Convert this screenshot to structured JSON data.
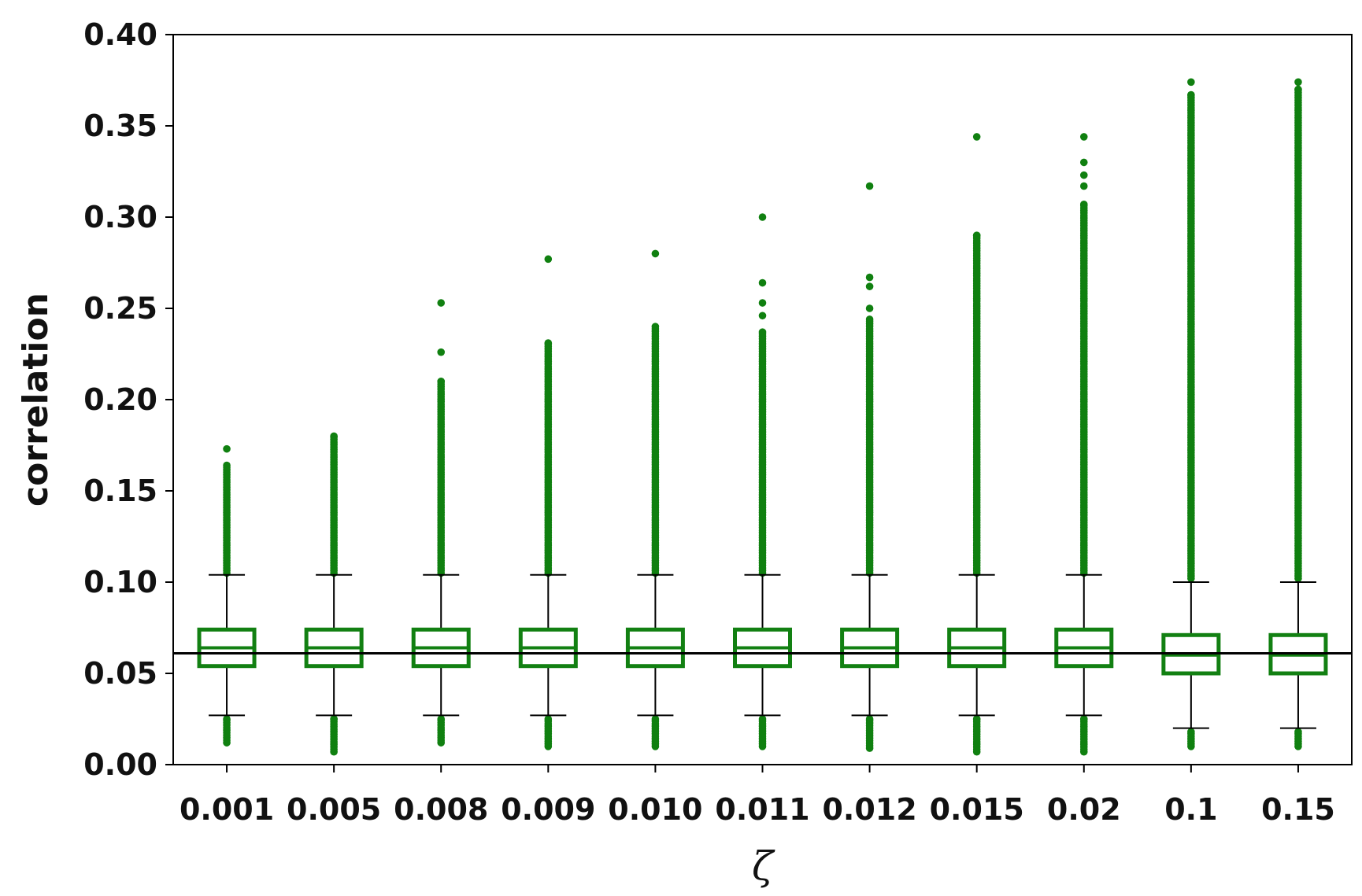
{
  "chart_data": {
    "type": "box",
    "xlabel": "ζ",
    "ylabel": "correlation",
    "ylim": [
      0.0,
      0.4
    ],
    "yticks": [
      "0.00",
      "0.05",
      "0.10",
      "0.15",
      "0.20",
      "0.25",
      "0.30",
      "0.35",
      "0.40"
    ],
    "categories": [
      "0.001",
      "0.005",
      "0.008",
      "0.009",
      "0.010",
      "0.011",
      "0.012",
      "0.015",
      "0.02",
      "0.1",
      "0.15"
    ],
    "reference_line": 0.061,
    "box_color": "#128012",
    "outlier_color": "#108010",
    "boxes": [
      {
        "q1": 0.054,
        "median": 0.064,
        "q3": 0.074,
        "whisker_low": 0.027,
        "whisker_high": 0.104,
        "low_outliers": [
          0.012,
          0.025
        ],
        "high_outliers": [
          0.105,
          0.164
        ],
        "extreme_outliers": [
          0.173
        ]
      },
      {
        "q1": 0.054,
        "median": 0.064,
        "q3": 0.074,
        "whisker_low": 0.027,
        "whisker_high": 0.104,
        "low_outliers": [
          0.007,
          0.025
        ],
        "high_outliers": [
          0.105,
          0.18
        ],
        "extreme_outliers": []
      },
      {
        "q1": 0.054,
        "median": 0.064,
        "q3": 0.074,
        "whisker_low": 0.027,
        "whisker_high": 0.104,
        "low_outliers": [
          0.012,
          0.025
        ],
        "high_outliers": [
          0.105,
          0.21
        ],
        "extreme_outliers": [
          0.226,
          0.253
        ]
      },
      {
        "q1": 0.054,
        "median": 0.064,
        "q3": 0.074,
        "whisker_low": 0.027,
        "whisker_high": 0.104,
        "low_outliers": [
          0.01,
          0.025
        ],
        "high_outliers": [
          0.105,
          0.231
        ],
        "extreme_outliers": [
          0.277
        ]
      },
      {
        "q1": 0.054,
        "median": 0.064,
        "q3": 0.074,
        "whisker_low": 0.027,
        "whisker_high": 0.104,
        "low_outliers": [
          0.01,
          0.025
        ],
        "high_outliers": [
          0.105,
          0.24
        ],
        "extreme_outliers": [
          0.28
        ]
      },
      {
        "q1": 0.054,
        "median": 0.064,
        "q3": 0.074,
        "whisker_low": 0.027,
        "whisker_high": 0.104,
        "low_outliers": [
          0.01,
          0.025
        ],
        "high_outliers": [
          0.105,
          0.237
        ],
        "extreme_outliers": [
          0.246,
          0.253,
          0.264,
          0.3
        ]
      },
      {
        "q1": 0.054,
        "median": 0.064,
        "q3": 0.074,
        "whisker_low": 0.027,
        "whisker_high": 0.104,
        "low_outliers": [
          0.009,
          0.025
        ],
        "high_outliers": [
          0.105,
          0.244
        ],
        "extreme_outliers": [
          0.25,
          0.262,
          0.267,
          0.317
        ]
      },
      {
        "q1": 0.054,
        "median": 0.064,
        "q3": 0.074,
        "whisker_low": 0.027,
        "whisker_high": 0.104,
        "low_outliers": [
          0.007,
          0.025
        ],
        "high_outliers": [
          0.105,
          0.29
        ],
        "extreme_outliers": [
          0.344
        ]
      },
      {
        "q1": 0.054,
        "median": 0.064,
        "q3": 0.074,
        "whisker_low": 0.027,
        "whisker_high": 0.104,
        "low_outliers": [
          0.007,
          0.025
        ],
        "high_outliers": [
          0.105,
          0.307
        ],
        "extreme_outliers": [
          0.317,
          0.323,
          0.33,
          0.344
        ]
      },
      {
        "q1": 0.05,
        "median": 0.06,
        "q3": 0.071,
        "whisker_low": 0.02,
        "whisker_high": 0.1,
        "low_outliers": [
          0.01,
          0.018
        ],
        "high_outliers": [
          0.102,
          0.367
        ],
        "extreme_outliers": [
          0.374
        ]
      },
      {
        "q1": 0.05,
        "median": 0.06,
        "q3": 0.071,
        "whisker_low": 0.02,
        "whisker_high": 0.1,
        "low_outliers": [
          0.01,
          0.018
        ],
        "high_outliers": [
          0.102,
          0.37
        ],
        "extreme_outliers": [
          0.374
        ]
      }
    ]
  }
}
